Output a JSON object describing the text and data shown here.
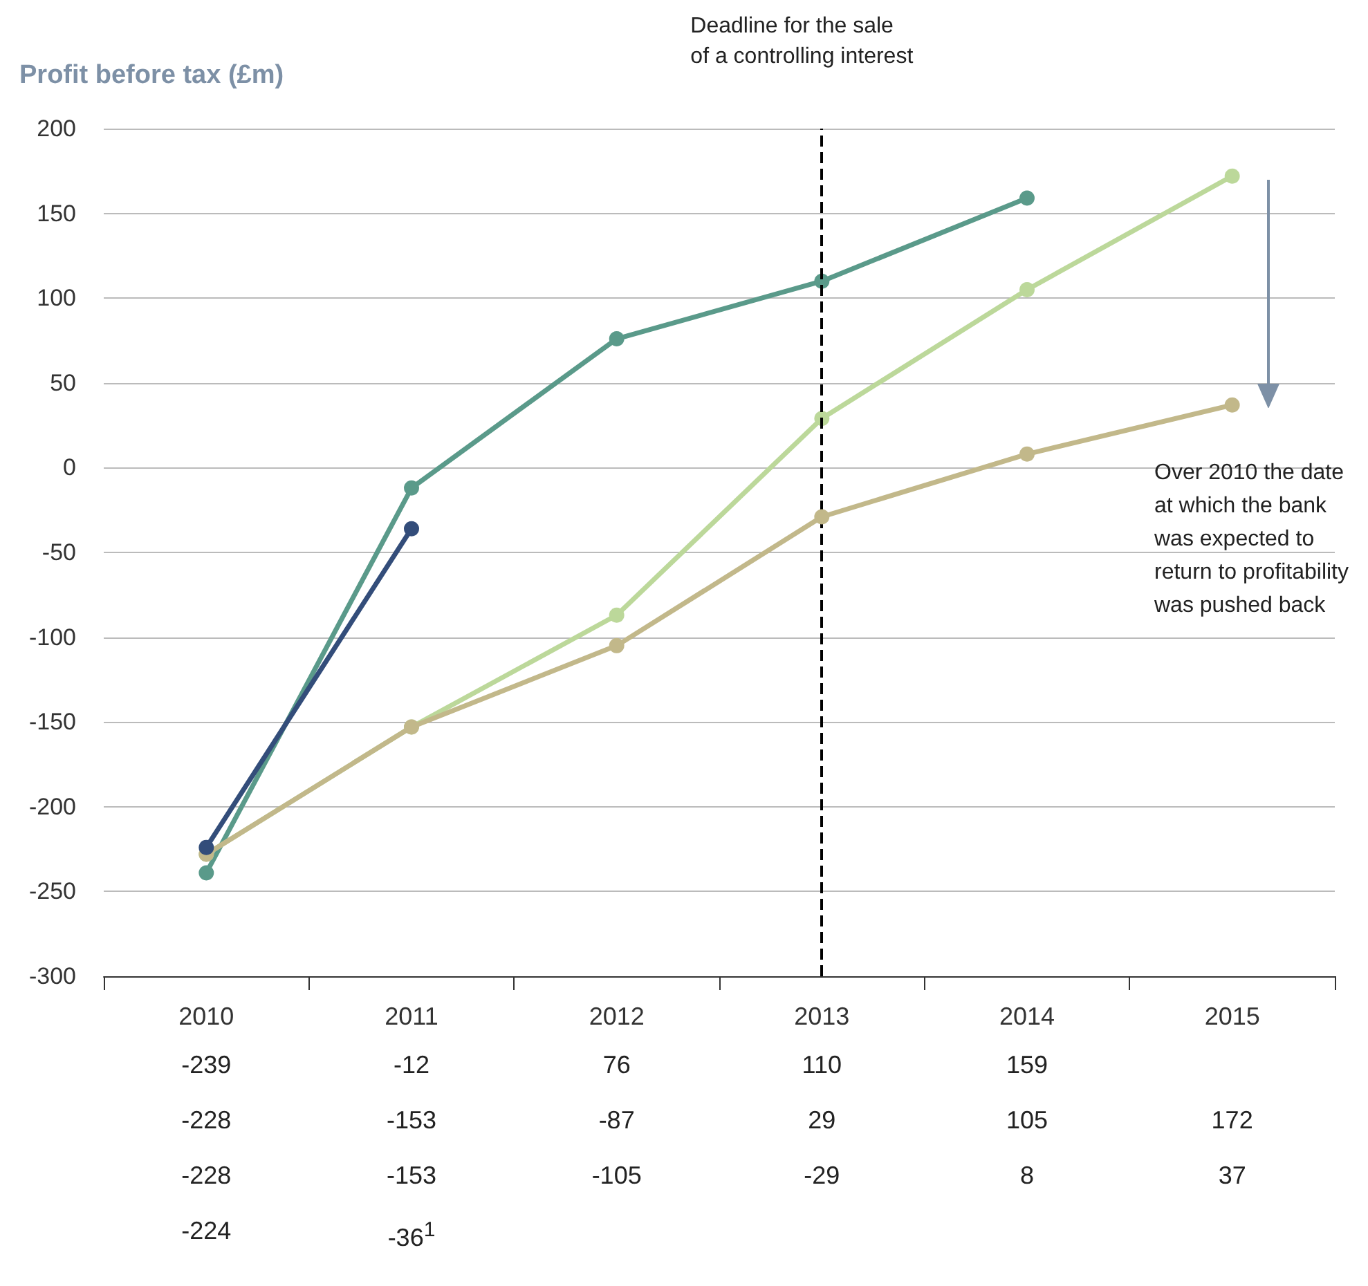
{
  "chart_data": {
    "type": "line",
    "ylabel": "Profit before tax (£m)",
    "categories": [
      "2010",
      "2011",
      "2012",
      "2013",
      "2014",
      "2015"
    ],
    "series": [
      {
        "color": "#5a9a8a",
        "values": [
          -239,
          -12,
          76,
          110,
          159,
          null
        ],
        "value_labels": [
          "-239",
          "-12",
          "76",
          "110",
          "159",
          null
        ]
      },
      {
        "color": "#bcd89a",
        "values": [
          -228,
          -153,
          -87,
          29,
          105,
          172
        ],
        "value_labels": [
          "-228",
          "-153",
          "-87",
          "29",
          "105",
          "172"
        ]
      },
      {
        "color": "#c2b88a",
        "values": [
          -228,
          -153,
          -105,
          -29,
          8,
          37
        ],
        "value_labels": [
          "-228",
          "-153",
          "-105",
          "-29",
          "8",
          "37"
        ]
      },
      {
        "color": "#334d7a",
        "values": [
          -224,
          -36,
          null,
          null,
          null,
          null
        ],
        "value_labels": [
          "-224",
          "-36$^{1}$",
          null,
          null,
          null,
          null
        ]
      }
    ],
    "ylim": [
      -300,
      200
    ],
    "yticks": [
      -300,
      -250,
      -200,
      -150,
      -100,
      -50,
      0,
      50,
      100,
      150,
      200
    ],
    "grid": "y",
    "marker": "circle",
    "line_style": "solid",
    "ref_lines": [
      {
        "axis": "x",
        "value": "2013",
        "label": "Deadline for the sale\nof a controlling interest",
        "color": "#000000",
        "line_style": "dashed"
      }
    ],
    "annotations": [
      "Over 2010 the date\nat which the bank\nwas expected to\nreturn to profitability\nwas pushed back"
    ]
  }
}
